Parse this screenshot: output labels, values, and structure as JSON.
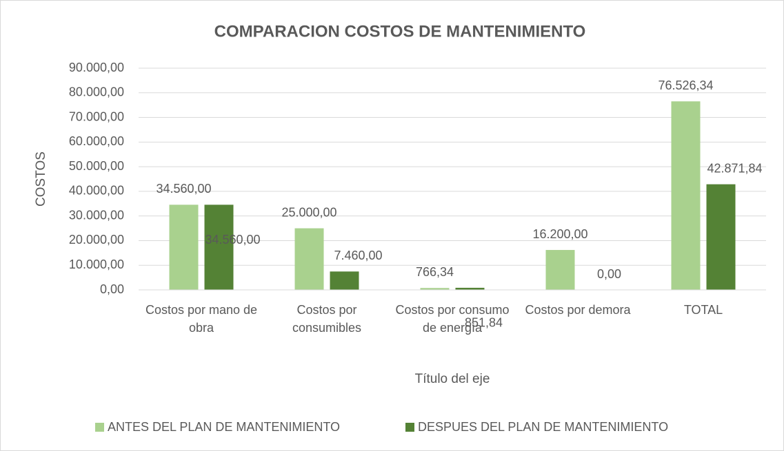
{
  "chart_data": {
    "type": "bar",
    "title": "COMPARACION COSTOS DE MANTENIMIENTO",
    "x_label": "Título del eje",
    "y_label": "COSTOS",
    "categories": [
      "Costos por mano de obra",
      "Costos por consumibles",
      "Costos por consumo de energìa",
      "Costos por demora",
      "TOTAL"
    ],
    "series": [
      {
        "name": "ANTES DEL PLAN DE MANTENIMIENTO",
        "color": "#a9d18e",
        "values": [
          34560,
          25000,
          766.34,
          16200,
          76526.34
        ],
        "value_labels": [
          "34.560,00",
          "25.000,00",
          "766,34",
          "16.200,00",
          "76.526,34"
        ]
      },
      {
        "name": "DESPUES DEL PLAN DE MANTENIMIENTO",
        "color": "#548235",
        "values": [
          34560,
          7460,
          851.84,
          0,
          42871.84
        ],
        "value_labels": [
          "34.560,00",
          "7.460,00",
          "851,84",
          "0,00",
          "42.871,84"
        ]
      }
    ],
    "ylim": [
      0,
      90000
    ],
    "yticks": [
      {
        "value": 0,
        "label": "0,00"
      },
      {
        "value": 10000,
        "label": "10.000,00"
      },
      {
        "value": 20000,
        "label": "20.000,00"
      },
      {
        "value": 30000,
        "label": "30.000,00"
      },
      {
        "value": 40000,
        "label": "40.000,00"
      },
      {
        "value": 50000,
        "label": "50.000,00"
      },
      {
        "value": 60000,
        "label": "60.000,00"
      },
      {
        "value": 70000,
        "label": "70.000,00"
      },
      {
        "value": 80000,
        "label": "80.000,00"
      },
      {
        "value": 90000,
        "label": "90.000,00"
      }
    ],
    "grid": true,
    "legend": "bottom"
  }
}
